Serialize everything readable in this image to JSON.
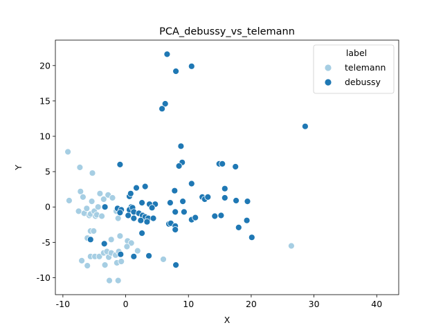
{
  "chart_data": {
    "type": "scatter",
    "title": "PCA_debussy_vs_telemann",
    "xlabel": "X",
    "ylabel": "Y",
    "xlim": [
      -11.2,
      43.5
    ],
    "ylim": [
      -12.4,
      23.6
    ],
    "xticks": [
      -10,
      0,
      10,
      20,
      30,
      40
    ],
    "yticks": [
      -10,
      -5,
      0,
      5,
      10,
      15,
      20
    ],
    "grid": false,
    "legend": {
      "title": "label",
      "placement": "top-right"
    },
    "series": [
      {
        "name": "telemann",
        "color": "#a6cee3",
        "points": [
          [
            -9.2,
            7.8
          ],
          [
            -9.0,
            0.9
          ],
          [
            -7.3,
            5.6
          ],
          [
            -7.2,
            2.2
          ],
          [
            -7.5,
            -0.6
          ],
          [
            -6.8,
            1.4
          ],
          [
            -6.6,
            -0.9
          ],
          [
            -6.2,
            -0.2
          ],
          [
            -5.8,
            -1.2
          ],
          [
            -5.6,
            -1.0
          ],
          [
            -5.4,
            0.8
          ],
          [
            -5.3,
            4.8
          ],
          [
            -5.0,
            -0.6
          ],
          [
            -4.8,
            -1.3
          ],
          [
            -4.6,
            -1.1
          ],
          [
            -4.4,
            0.0
          ],
          [
            -4.1,
            1.9
          ],
          [
            -3.8,
            -1.3
          ],
          [
            -3.5,
            1.1
          ],
          [
            -2.8,
            1.7
          ],
          [
            -2.1,
            1.3
          ],
          [
            -1.5,
            -0.6
          ],
          [
            -1.2,
            -1.6
          ],
          [
            -6.1,
            -4.4
          ],
          [
            -5.6,
            -3.4
          ],
          [
            -5.1,
            -3.4
          ],
          [
            -0.9,
            -4.1
          ],
          [
            0.3,
            -4.8
          ],
          [
            0.9,
            -5.1
          ],
          [
            0.2,
            -5.6
          ],
          [
            -2.3,
            -4.6
          ],
          [
            1.9,
            -6.2
          ],
          [
            6.0,
            -7.4
          ],
          [
            -7.0,
            -7.6
          ],
          [
            -6.1,
            -8.3
          ],
          [
            -5.6,
            -7.0
          ],
          [
            -4.9,
            -7.0
          ],
          [
            -4.2,
            -7.0
          ],
          [
            -3.5,
            -6.5
          ],
          [
            -3.3,
            -8.2
          ],
          [
            -3.0,
            -6.3
          ],
          [
            -2.7,
            -7.1
          ],
          [
            -2.3,
            -6.5
          ],
          [
            -1.6,
            -6.8
          ],
          [
            -1.4,
            -7.9
          ],
          [
            -1.1,
            -6.3
          ],
          [
            -0.7,
            -7.7
          ],
          [
            -2.6,
            -10.4
          ],
          [
            -1.2,
            -10.4
          ],
          [
            26.4,
            -5.5
          ]
        ]
      },
      {
        "name": "debussy",
        "color": "#1f78b4",
        "points": [
          [
            6.6,
            21.6
          ],
          [
            8.0,
            19.2
          ],
          [
            10.5,
            19.9
          ],
          [
            6.3,
            14.6
          ],
          [
            5.8,
            13.9
          ],
          [
            28.6,
            11.4
          ],
          [
            8.8,
            8.6
          ],
          [
            -0.9,
            6.0
          ],
          [
            9.0,
            6.3
          ],
          [
            8.5,
            5.8
          ],
          [
            14.9,
            6.1
          ],
          [
            15.4,
            6.1
          ],
          [
            17.5,
            5.7
          ],
          [
            10.5,
            3.3
          ],
          [
            15.8,
            2.6
          ],
          [
            1.7,
            2.7
          ],
          [
            3.1,
            2.9
          ],
          [
            7.8,
            2.3
          ],
          [
            0.6,
            1.5
          ],
          [
            0.8,
            1.9
          ],
          [
            12.2,
            1.4
          ],
          [
            15.8,
            1.3
          ],
          [
            12.6,
            1.1
          ],
          [
            13.1,
            1.4
          ],
          [
            17.6,
            0.9
          ],
          [
            19.4,
            0.8
          ],
          [
            9.1,
            0.8
          ],
          [
            7.1,
            0.6
          ],
          [
            2.6,
            0.6
          ],
          [
            4.7,
            0.4
          ],
          [
            3.8,
            0.4
          ],
          [
            4.2,
            -0.1
          ],
          [
            0.9,
            0.0
          ],
          [
            -3.3,
            0.0
          ],
          [
            -1.3,
            -0.2
          ],
          [
            -0.7,
            -0.4
          ],
          [
            -0.9,
            -0.8
          ],
          [
            0.6,
            -0.4
          ],
          [
            1.1,
            -0.1
          ],
          [
            1.3,
            -0.7
          ],
          [
            2.1,
            -0.9
          ],
          [
            2.7,
            -1.2
          ],
          [
            3.1,
            -1.4
          ],
          [
            0.4,
            -1.2
          ],
          [
            1.3,
            -1.6
          ],
          [
            2.4,
            -1.9
          ],
          [
            3.6,
            -1.6
          ],
          [
            4.4,
            -1.6
          ],
          [
            3.4,
            -2.1
          ],
          [
            7.9,
            -0.7
          ],
          [
            9.3,
            -0.7
          ],
          [
            10.5,
            -1.8
          ],
          [
            11.1,
            -1.5
          ],
          [
            14.2,
            -1.3
          ],
          [
            15.2,
            -1.2
          ],
          [
            19.3,
            -1.9
          ],
          [
            18.0,
            -2.9
          ],
          [
            20.1,
            -4.3
          ],
          [
            6.9,
            -2.4
          ],
          [
            7.2,
            -2.3
          ],
          [
            7.9,
            -2.7
          ],
          [
            7.9,
            -3.2
          ],
          [
            2.6,
            -3.7
          ],
          [
            -5.6,
            -4.6
          ],
          [
            -3.4,
            -5.2
          ],
          [
            -0.8,
            -6.7
          ],
          [
            1.3,
            -7.0
          ],
          [
            3.7,
            -6.9
          ],
          [
            8.0,
            -8.2
          ]
        ]
      }
    ]
  }
}
